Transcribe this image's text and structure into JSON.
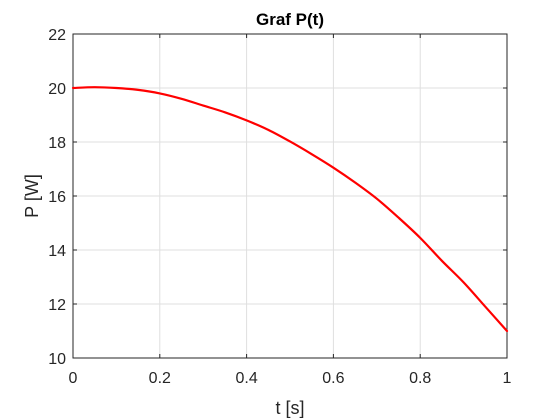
{
  "chart_data": {
    "type": "line",
    "title": "Graf P(t)",
    "xlabel": "t [s]",
    "ylabel": "P [W]",
    "xlim": [
      0,
      1
    ],
    "ylim": [
      10,
      22
    ],
    "xticks": [
      0,
      0.2,
      0.4,
      0.6,
      0.8,
      1
    ],
    "xtick_labels": [
      "0",
      "0.2",
      "0.4",
      "0.6",
      "0.8",
      "1"
    ],
    "yticks": [
      10,
      12,
      14,
      16,
      18,
      20,
      22
    ],
    "ytick_labels": [
      "10",
      "12",
      "14",
      "16",
      "18",
      "20",
      "22"
    ],
    "grid": true,
    "series": [
      {
        "color": "#ff0000",
        "x": [
          0,
          0.05,
          0.1,
          0.15,
          0.2,
          0.25,
          0.3,
          0.35,
          0.4,
          0.45,
          0.5,
          0.55,
          0.6,
          0.65,
          0.7,
          0.75,
          0.8,
          0.85,
          0.9,
          0.95,
          1
        ],
        "y": [
          20.0,
          20.03,
          20.0,
          19.93,
          19.8,
          19.6,
          19.35,
          19.1,
          18.8,
          18.45,
          18.02,
          17.55,
          17.05,
          16.5,
          15.9,
          15.2,
          14.45,
          13.6,
          12.8,
          11.9,
          11.0
        ]
      }
    ]
  },
  "colors": {
    "background": "#ffffff",
    "axis": "#262626",
    "grid": "#dfdfdf",
    "line": "#ff0000"
  }
}
